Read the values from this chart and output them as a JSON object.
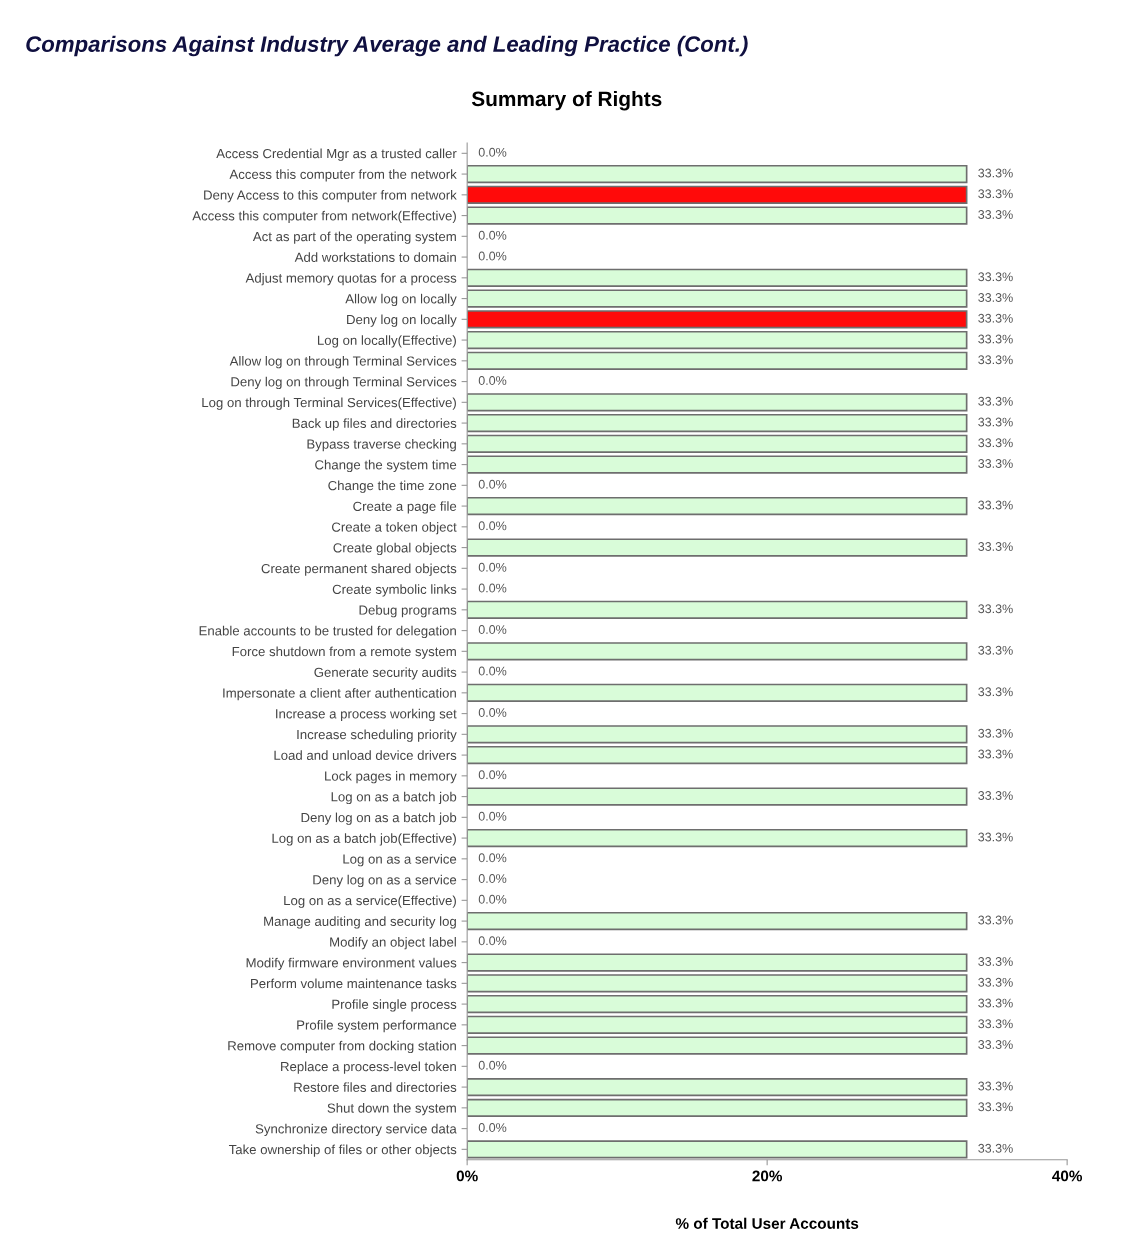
{
  "chart_data": {
    "type": "bar",
    "orientation": "horizontal",
    "title": "Comparisons Against Industry Average and Leading Practice (Cont.)",
    "subtitle": "Summary of Rights",
    "xlabel": "% of Total User Accounts",
    "categories": [
      "Access Credential Mgr as a trusted caller",
      "Access this computer from the network",
      "Deny Access to this computer from network",
      "Access this computer from network(Effective)",
      "Act as part of the operating system",
      "Add workstations to domain",
      "Adjust memory quotas for a process",
      "Allow log on locally",
      "Deny log on locally",
      "Log on locally(Effective)",
      "Allow log on through Terminal Services",
      "Deny log on through Terminal Services",
      "Log on through Terminal Services(Effective)",
      "Back up files and directories",
      "Bypass traverse checking",
      "Change the system time",
      "Change the time zone",
      "Create a page file",
      "Create a token object",
      "Create global objects",
      "Create permanent shared objects",
      "Create symbolic links",
      "Debug programs",
      "Enable accounts to be trusted for delegation",
      "Force shutdown from a remote system",
      "Generate security audits",
      "Impersonate a client after authentication",
      "Increase a process working set",
      "Increase scheduling priority",
      "Load and unload device drivers",
      "Lock pages in memory",
      "Log on as a batch job",
      "Deny log on as a batch job",
      "Log on as a batch job(Effective)",
      "Log on as a service",
      "Deny log on as a service",
      "Log on as a service(Effective)",
      "Manage auditing and security log",
      "Modify an object label",
      "Modify firmware environment values",
      "Perform volume maintenance tasks",
      "Profile single process",
      "Profile system performance",
      "Remove computer from docking station",
      "Replace a process-level token",
      "Restore files and directories",
      "Shut down the system",
      "Synchronize directory service data",
      "Take ownership of files or other objects"
    ],
    "values": [
      0.0,
      33.3,
      33.3,
      33.3,
      0.0,
      0.0,
      33.3,
      33.3,
      33.3,
      33.3,
      33.3,
      0.0,
      33.3,
      33.3,
      33.3,
      33.3,
      0.0,
      33.3,
      0.0,
      33.3,
      0.0,
      0.0,
      33.3,
      0.0,
      33.3,
      0.0,
      33.3,
      0.0,
      33.3,
      33.3,
      0.0,
      33.3,
      0.0,
      33.3,
      0.0,
      0.0,
      0.0,
      33.3,
      0.0,
      33.3,
      33.3,
      33.3,
      33.3,
      33.3,
      0.0,
      33.3,
      33.3,
      0.0,
      33.3
    ],
    "colors": [
      "#d9fcd9",
      "#d9fcd9",
      "#ff0a0a",
      "#d9fcd9",
      "#d9fcd9",
      "#d9fcd9",
      "#d9fcd9",
      "#d9fcd9",
      "#ff0a0a",
      "#d9fcd9",
      "#d9fcd9",
      "#d9fcd9",
      "#d9fcd9",
      "#d9fcd9",
      "#d9fcd9",
      "#d9fcd9",
      "#d9fcd9",
      "#d9fcd9",
      "#d9fcd9",
      "#d9fcd9",
      "#d9fcd9",
      "#d9fcd9",
      "#d9fcd9",
      "#d9fcd9",
      "#d9fcd9",
      "#d9fcd9",
      "#d9fcd9",
      "#d9fcd9",
      "#d9fcd9",
      "#d9fcd9",
      "#d9fcd9",
      "#d9fcd9",
      "#d9fcd9",
      "#d9fcd9",
      "#d9fcd9",
      "#d9fcd9",
      "#d9fcd9",
      "#d9fcd9",
      "#d9fcd9",
      "#d9fcd9",
      "#d9fcd9",
      "#d9fcd9",
      "#d9fcd9",
      "#d9fcd9",
      "#d9fcd9",
      "#d9fcd9",
      "#d9fcd9",
      "#d9fcd9",
      "#d9fcd9"
    ],
    "value_labels": [
      "0.0%",
      "33.3%",
      "33.3%",
      "33.3%",
      "0.0%",
      "0.0%",
      "33.3%",
      "33.3%",
      "33.3%",
      "33.3%",
      "33.3%",
      "0.0%",
      "33.3%",
      "33.3%",
      "33.3%",
      "33.3%",
      "0.0%",
      "33.3%",
      "0.0%",
      "33.3%",
      "0.0%",
      "0.0%",
      "33.3%",
      "0.0%",
      "33.3%",
      "0.0%",
      "33.3%",
      "0.0%",
      "33.3%",
      "33.3%",
      "0.0%",
      "33.3%",
      "0.0%",
      "33.3%",
      "0.0%",
      "0.0%",
      "0.0%",
      "33.3%",
      "0.0%",
      "33.3%",
      "33.3%",
      "33.3%",
      "33.3%",
      "33.3%",
      "0.0%",
      "33.3%",
      "33.3%",
      "0.0%",
      "33.3%"
    ],
    "xlim": [
      0,
      40
    ],
    "xticks": [
      {
        "value": 0,
        "label": "0%"
      },
      {
        "value": 20,
        "label": "20%"
      },
      {
        "value": 40,
        "label": "40%"
      }
    ],
    "grid": false
  }
}
